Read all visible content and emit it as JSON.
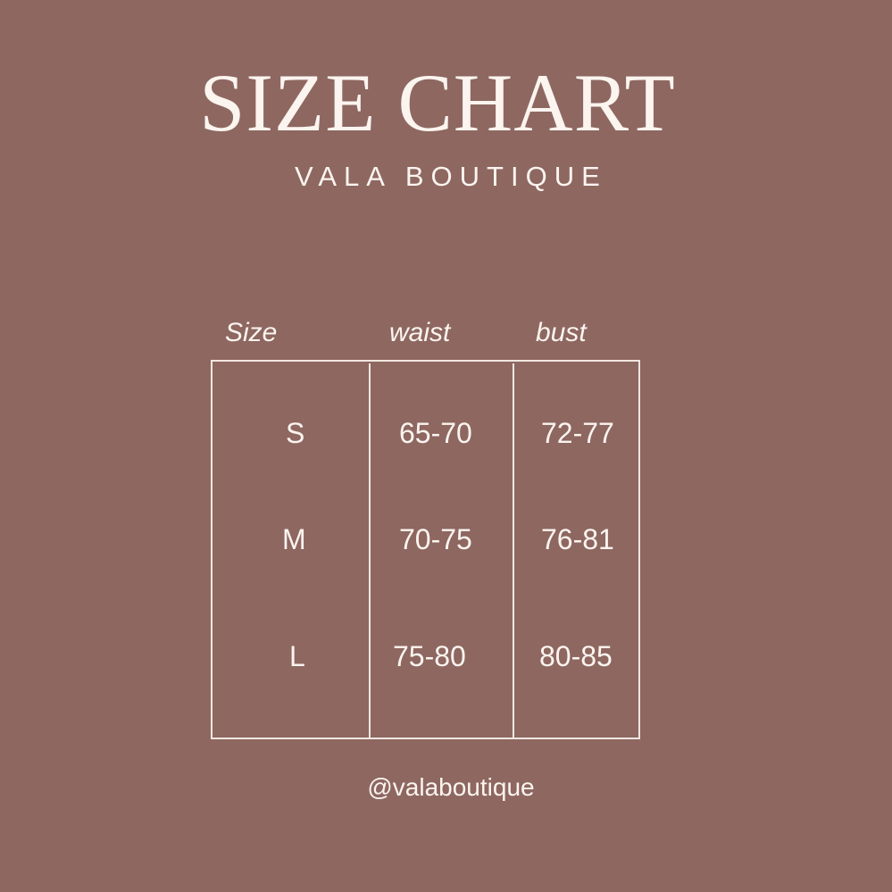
{
  "title": "SIZE CHART",
  "subtitle": "VALA BOUTIQUE",
  "headers": [
    "Size",
    "waist",
    "bust"
  ],
  "rows": [
    {
      "size": "S",
      "waist": "65-70",
      "bust": "72-77"
    },
    {
      "size": "M",
      "waist": "70-75",
      "bust": "76-81"
    },
    {
      "size": "L",
      "waist": "75-80",
      "bust": "80-85"
    }
  ],
  "handle": "@valaboutique",
  "colors": {
    "background": "#8e6761",
    "text": "#fbf4ef"
  }
}
